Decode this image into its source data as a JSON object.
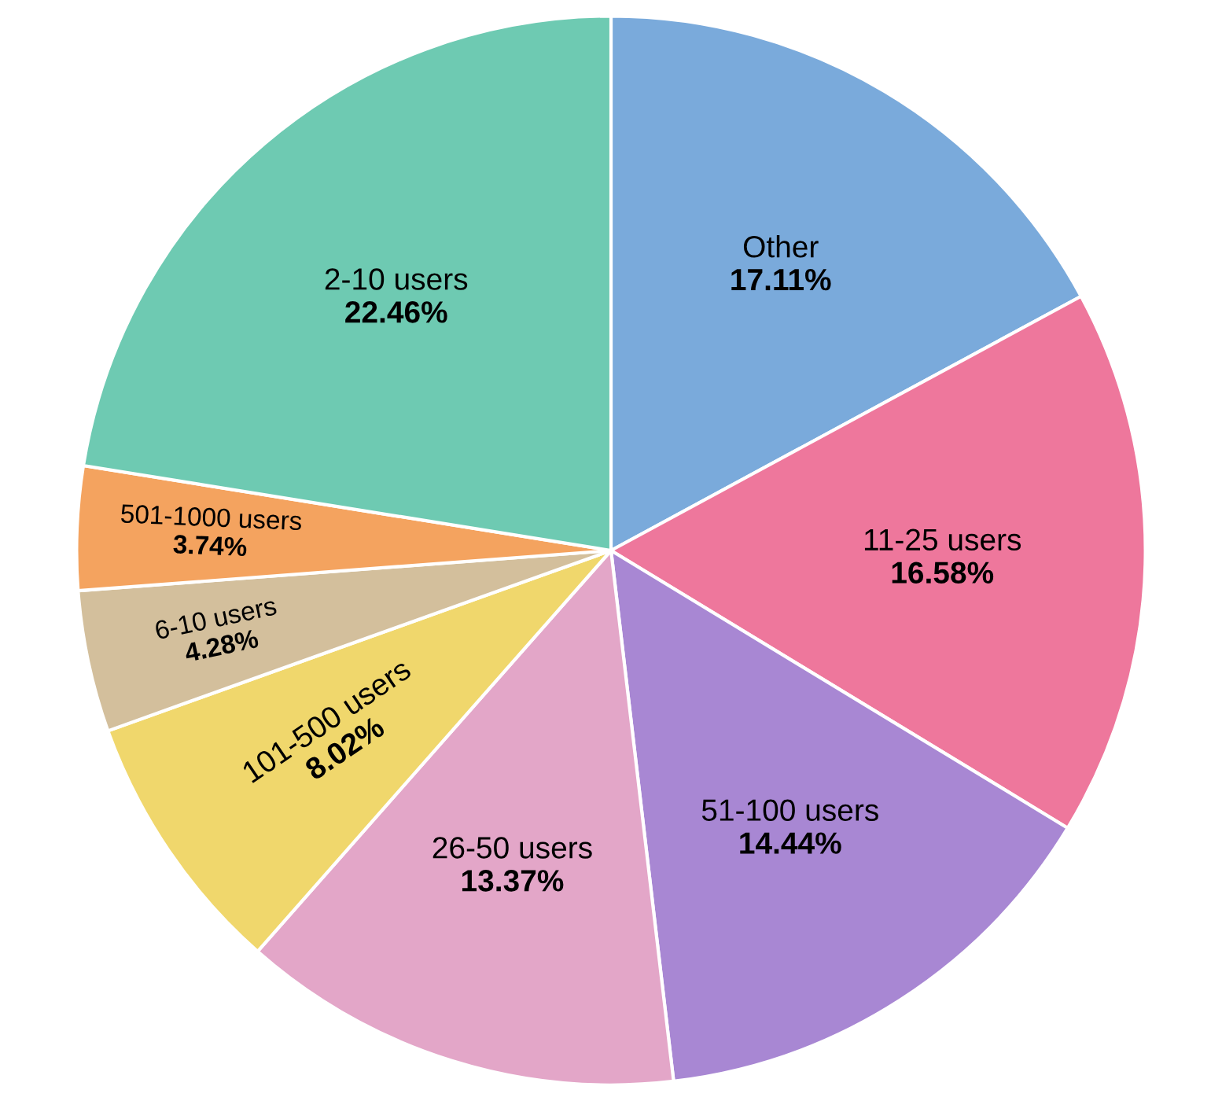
{
  "chart_data": {
    "type": "pie",
    "categories": [
      "Other",
      "11-25 users",
      "51-100 users",
      "26-50 users",
      "101-500 users",
      "6-10 users",
      "501-1000 users",
      "2-10 users"
    ],
    "values": [
      17.11,
      16.58,
      14.44,
      13.37,
      8.02,
      4.28,
      3.74,
      22.46
    ],
    "value_labels": [
      "17.11%",
      "16.58%",
      "14.44%",
      "13.37%",
      "8.02%",
      "4.28%",
      "3.74%",
      "22.46%"
    ],
    "colors": [
      "#7aaadb",
      "#ee779c",
      "#a887d3",
      "#e3a6c8",
      "#f0d76c",
      "#d3bf9c",
      "#f4a35f",
      "#6ecab2"
    ],
    "legend": false
  }
}
